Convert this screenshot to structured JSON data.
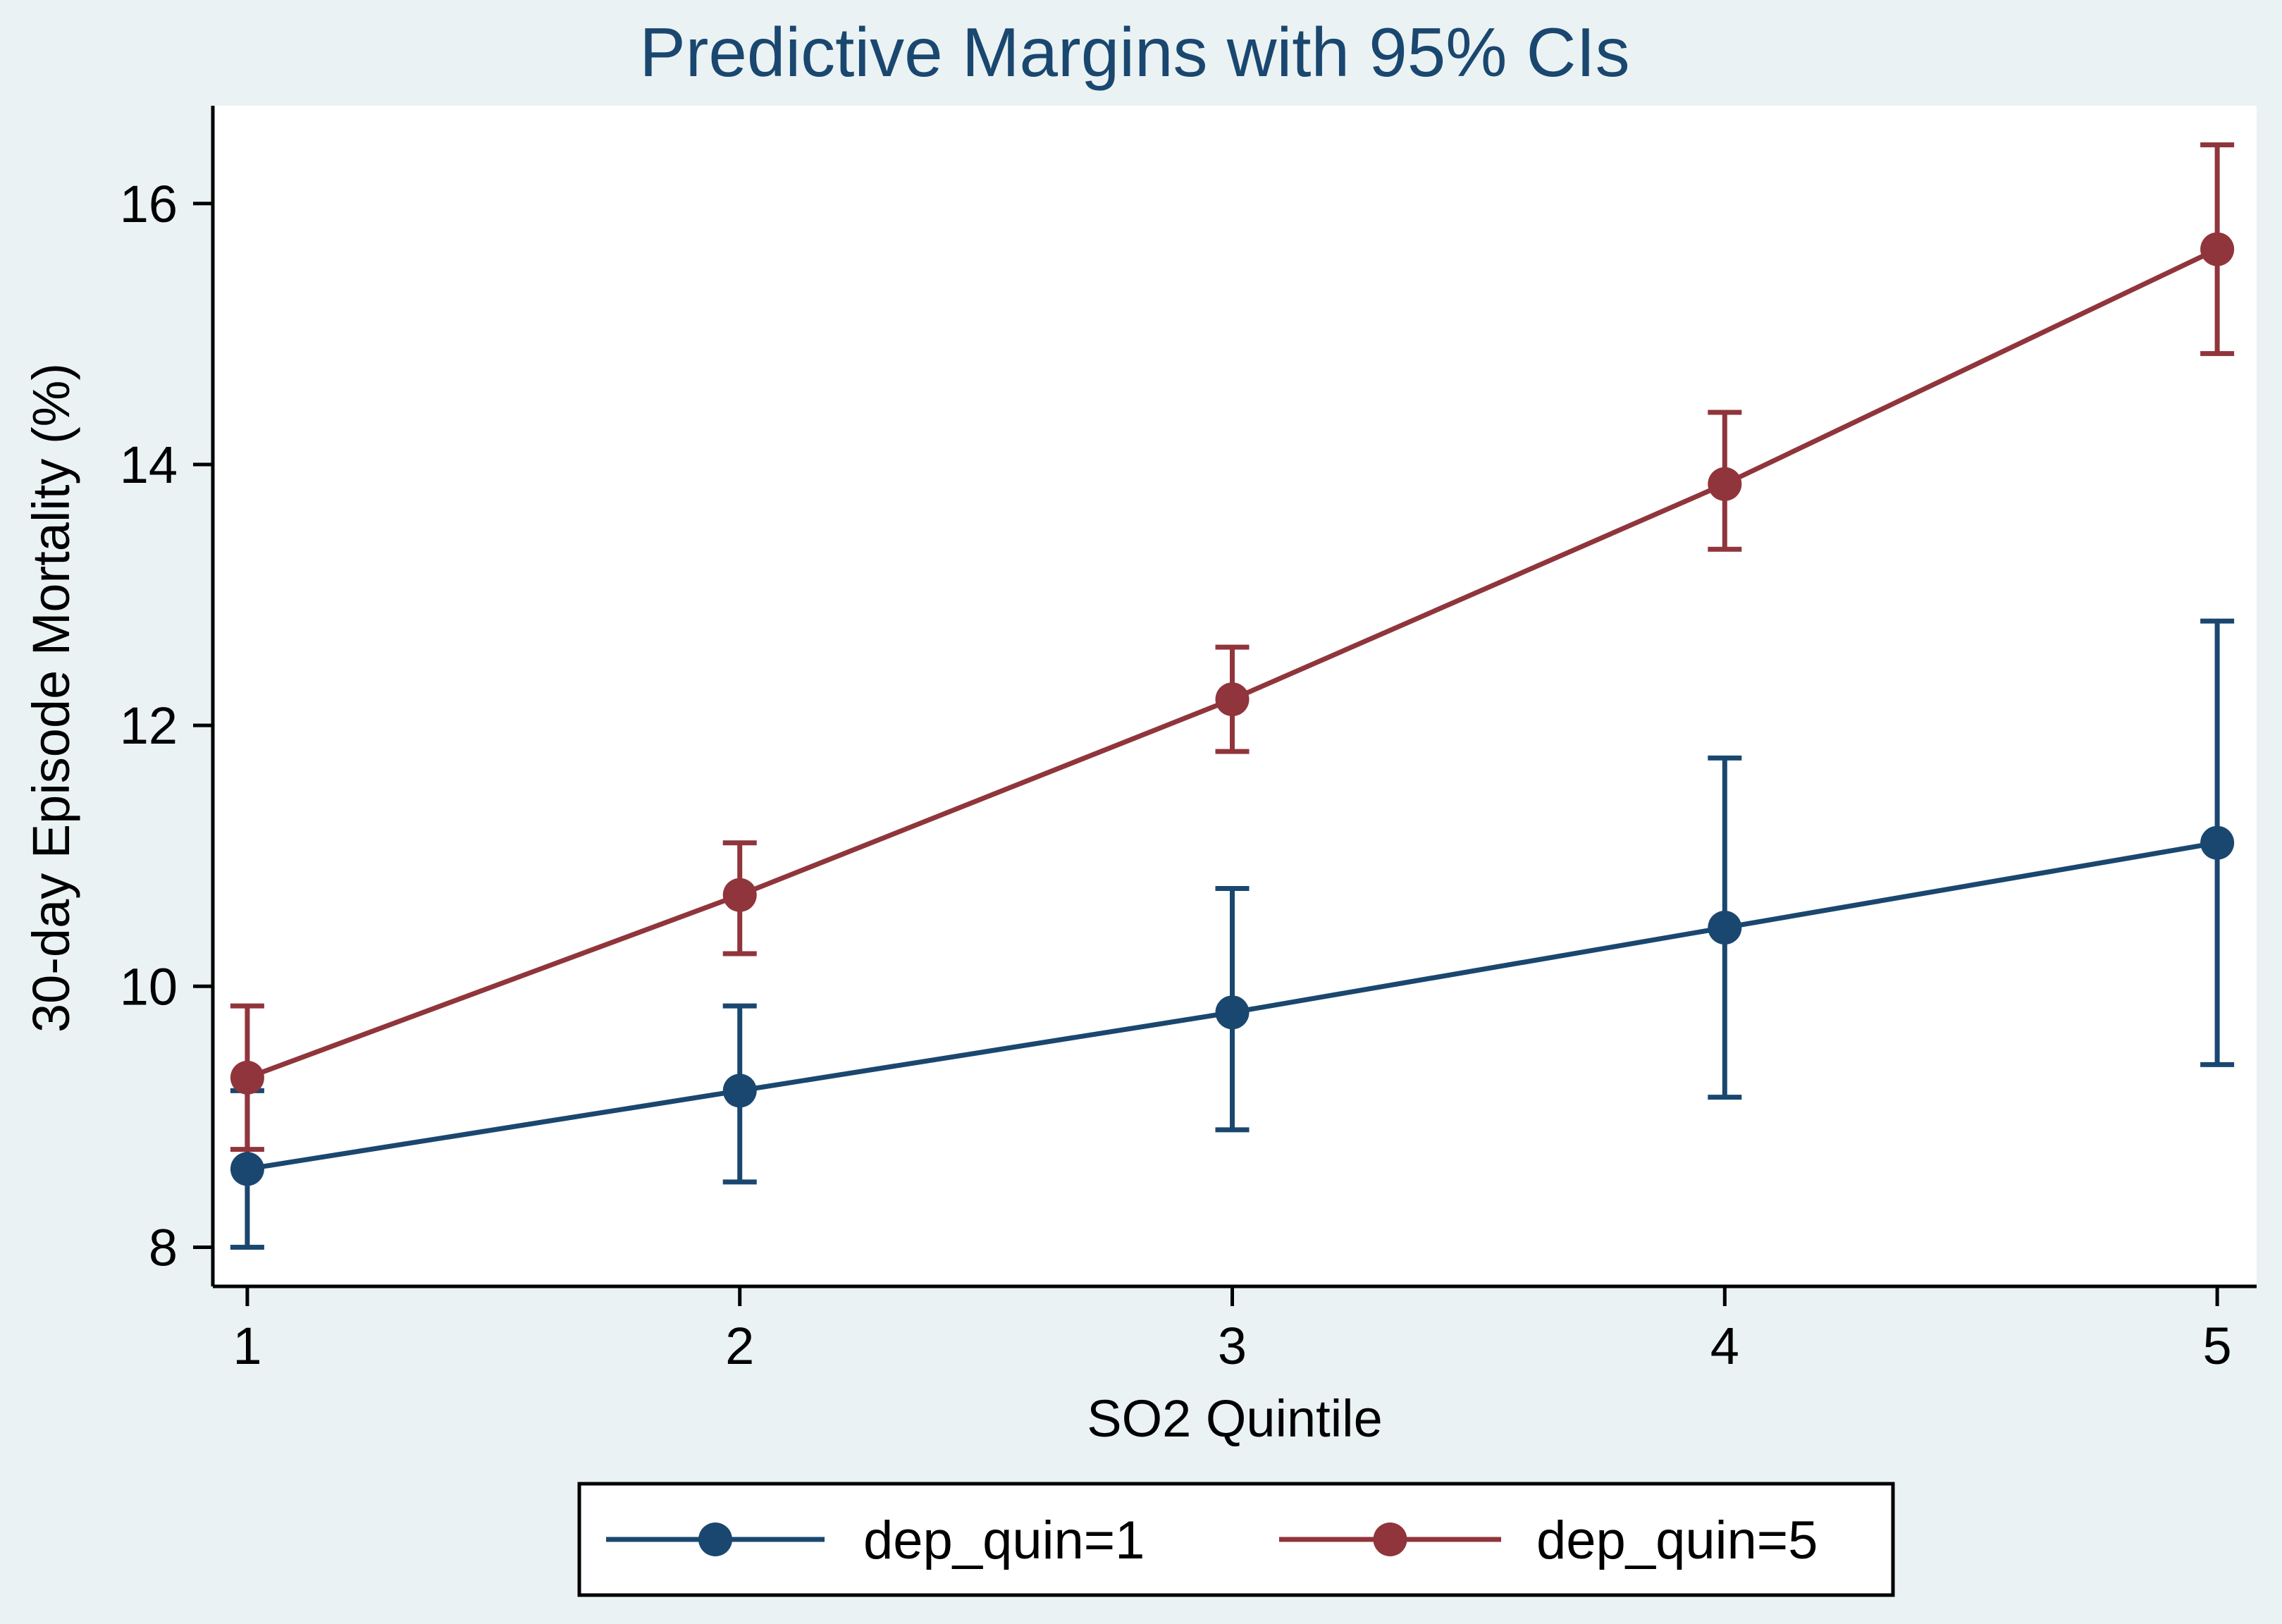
{
  "chart_data": {
    "type": "line",
    "title": "Predictive Margins with 95% CIs",
    "xlabel": "SO2 Quintile",
    "ylabel": "30-day Episode Mortality (%)",
    "categories": [
      1,
      2,
      3,
      4,
      5
    ],
    "x_ticks": [
      "1",
      "2",
      "3",
      "4",
      "5"
    ],
    "y_ticks": [
      8,
      10,
      12,
      14,
      16
    ],
    "xlim": [
      0.93,
      5.08
    ],
    "ylim": [
      7.7,
      16.75
    ],
    "grid": false,
    "legend_position": "bottom",
    "series": [
      {
        "name": "dep_quin=1",
        "color": "#1a476f",
        "values": [
          8.6,
          9.2,
          9.8,
          10.45,
          11.1
        ],
        "ci_lower": [
          8.0,
          8.5,
          8.9,
          9.15,
          9.4
        ],
        "ci_upper": [
          9.2,
          9.85,
          10.75,
          11.75,
          12.8
        ]
      },
      {
        "name": "dep_quin=5",
        "color": "#90353b",
        "values": [
          9.3,
          10.7,
          12.2,
          13.85,
          15.65
        ],
        "ci_lower": [
          8.75,
          10.25,
          11.8,
          13.35,
          14.85
        ],
        "ci_upper": [
          9.85,
          11.1,
          12.6,
          14.4,
          16.45
        ]
      }
    ],
    "colors": {
      "background": "#eaf2f3",
      "plot_background": "#ffffff",
      "title": "#1a476f",
      "axis": "#000000"
    }
  }
}
